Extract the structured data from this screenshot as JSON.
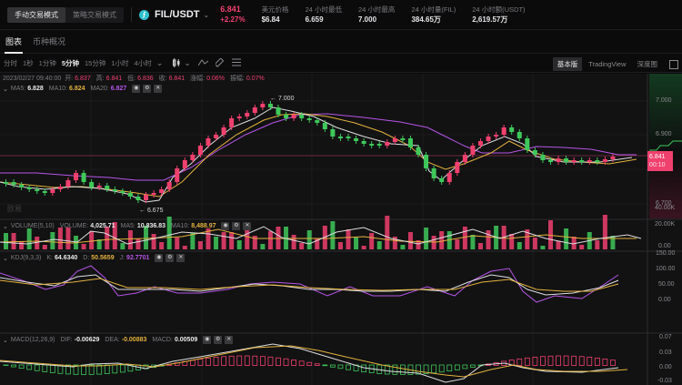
{
  "header": {
    "modes": [
      "手动交易模式",
      "策略交易模式"
    ],
    "active_mode": "手动交易模式",
    "coin_logo_glyph": "⨍",
    "pair": "FIL/USDT",
    "price": "6.841",
    "change": "+2.27%",
    "stats": [
      {
        "label": "美元价格",
        "value": "$6.84"
      },
      {
        "label": "24 小时最低",
        "value": "6.659"
      },
      {
        "label": "24 小时最高",
        "value": "7.000"
      },
      {
        "label": "24 小时量(FIL)",
        "value": "384.65万"
      },
      {
        "label": "24 小时额(USDT)",
        "value": "2,619.57万"
      }
    ]
  },
  "tabs": [
    {
      "label": "图表",
      "active": true
    },
    {
      "label": "币种概况",
      "active": false
    }
  ],
  "toolbar": {
    "timeframes": [
      "分时",
      "1秒",
      "1分钟",
      "5分钟",
      "15分钟",
      "1小时",
      "4小时"
    ],
    "active_timeframe": "5分钟",
    "more_chevron": "⌄",
    "views": [
      "基本版",
      "TradingView",
      "深度图"
    ],
    "active_view": "基本版"
  },
  "candle_legend": {
    "datetime": "2023/02/27 09:40:00",
    "open_label": "开:",
    "open": "6.837",
    "high_label": "高:",
    "high": "6.841",
    "low_label": "低:",
    "low": "6.836",
    "close_label": "收:",
    "close": "6.841",
    "chg_label": "涨幅:",
    "chg": "0.06%",
    "amp_label": "振幅:",
    "amp": "0.07%"
  },
  "ma_legend": {
    "ma5_label": "MA5:",
    "ma5": "6.828",
    "ma10_label": "MA10:",
    "ma10": "6.824",
    "ma20_label": "MA20:",
    "ma20": "6.827"
  },
  "volume_legend": {
    "title": "VOLUME(5,10)",
    "vol_label": "VOLUME:",
    "vol": "4,025.71",
    "ma5_label": "MA5:",
    "ma5": "10,836.83",
    "ma10_label": "MA10:",
    "ma10": "8,488.97"
  },
  "kdj_legend": {
    "title": "KDJ(9,3,3)",
    "k_label": "K:",
    "k": "64.6340",
    "d_label": "D:",
    "d": "50.5659",
    "j_label": "J:",
    "j": "92.7701"
  },
  "macd_legend": {
    "title": "MACD(12,26,9)",
    "dif_label": "DIF:",
    "dif": "-0.00629",
    "dea_label": "DEA:",
    "dea": "-0.00883",
    "macd_label": "MACD:",
    "macd": "0.00509"
  },
  "axes": {
    "price": [
      "7.000",
      "6.900",
      "6.700"
    ],
    "volume": [
      "40.00K",
      "20.00K",
      "0.00"
    ],
    "kdj": [
      "150.00",
      "100.00",
      "50.00",
      "0.00"
    ],
    "macd": [
      "0.07",
      "0.03",
      "0.00",
      "-0.03"
    ]
  },
  "price_tag": {
    "price": "6.841",
    "countdown": "00:10"
  },
  "annotations": {
    "high": "← 7.000",
    "low": "← 6.675"
  },
  "watermark": "欧易",
  "colors": {
    "up": "#f0406e",
    "down": "#3fc85a",
    "ma5": "#e6e6e8",
    "ma10": "#e3b23c",
    "ma20": "#b655e6"
  }
}
